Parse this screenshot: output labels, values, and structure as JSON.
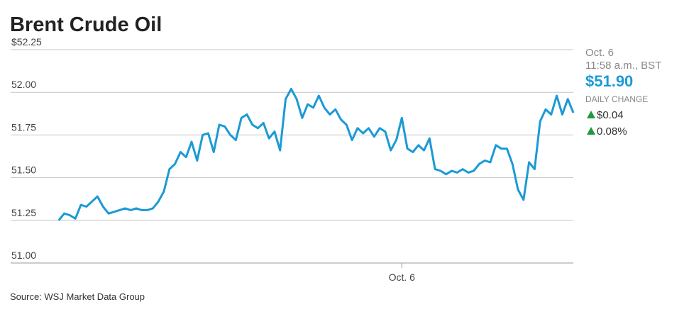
{
  "chart_data": {
    "type": "line",
    "title": "Brent Crude Oil",
    "values": [
      51.25,
      51.29,
      51.28,
      51.26,
      51.34,
      51.33,
      51.36,
      51.39,
      51.33,
      51.29,
      51.3,
      51.31,
      51.32,
      51.31,
      51.32,
      51.31,
      51.31,
      51.32,
      51.36,
      51.42,
      51.55,
      51.58,
      51.65,
      51.62,
      51.71,
      51.6,
      51.75,
      51.76,
      51.65,
      51.81,
      51.8,
      51.75,
      51.72,
      51.85,
      51.87,
      51.81,
      51.79,
      51.82,
      51.73,
      51.77,
      51.66,
      51.96,
      52.02,
      51.96,
      51.85,
      51.93,
      51.91,
      51.98,
      51.91,
      51.87,
      51.9,
      51.84,
      51.81,
      51.72,
      51.79,
      51.76,
      51.79,
      51.74,
      51.79,
      51.77,
      51.66,
      51.72,
      51.85,
      51.67,
      51.65,
      51.69,
      51.66,
      51.73,
      51.55,
      51.54,
      51.52,
      51.54,
      51.53,
      51.55,
      51.53,
      51.54,
      51.58,
      51.6,
      51.59,
      51.69,
      51.67,
      51.67,
      51.58,
      51.43,
      51.37,
      51.59,
      51.55,
      51.83,
      51.9,
      51.87,
      51.98,
      51.87,
      51.96,
      51.88
    ],
    "color": "#1b9ad6",
    "xlim": [
      -8.7,
      93
    ],
    "xticks": [
      {
        "value": 62,
        "label": "Oct. 6"
      }
    ],
    "ylim": [
      51.0,
      52.25
    ],
    "yticks": [
      {
        "value": 51.0,
        "label": "51.00"
      },
      {
        "value": 51.25,
        "label": "51.25"
      },
      {
        "value": 51.5,
        "label": "51.50"
      },
      {
        "value": 51.75,
        "label": "51.75"
      },
      {
        "value": 52.0,
        "label": "52.00"
      },
      {
        "value": 52.25,
        "label": "$52.25"
      }
    ],
    "grid": true,
    "quote": {
      "date": "Oct. 6",
      "time": "11:58 a.m., BST",
      "price": "$51.90",
      "change_label": "DAILY CHANGE",
      "change": "$0.04",
      "change_percent": "0.08%"
    },
    "source": "Source: WSJ Market Data Group"
  }
}
